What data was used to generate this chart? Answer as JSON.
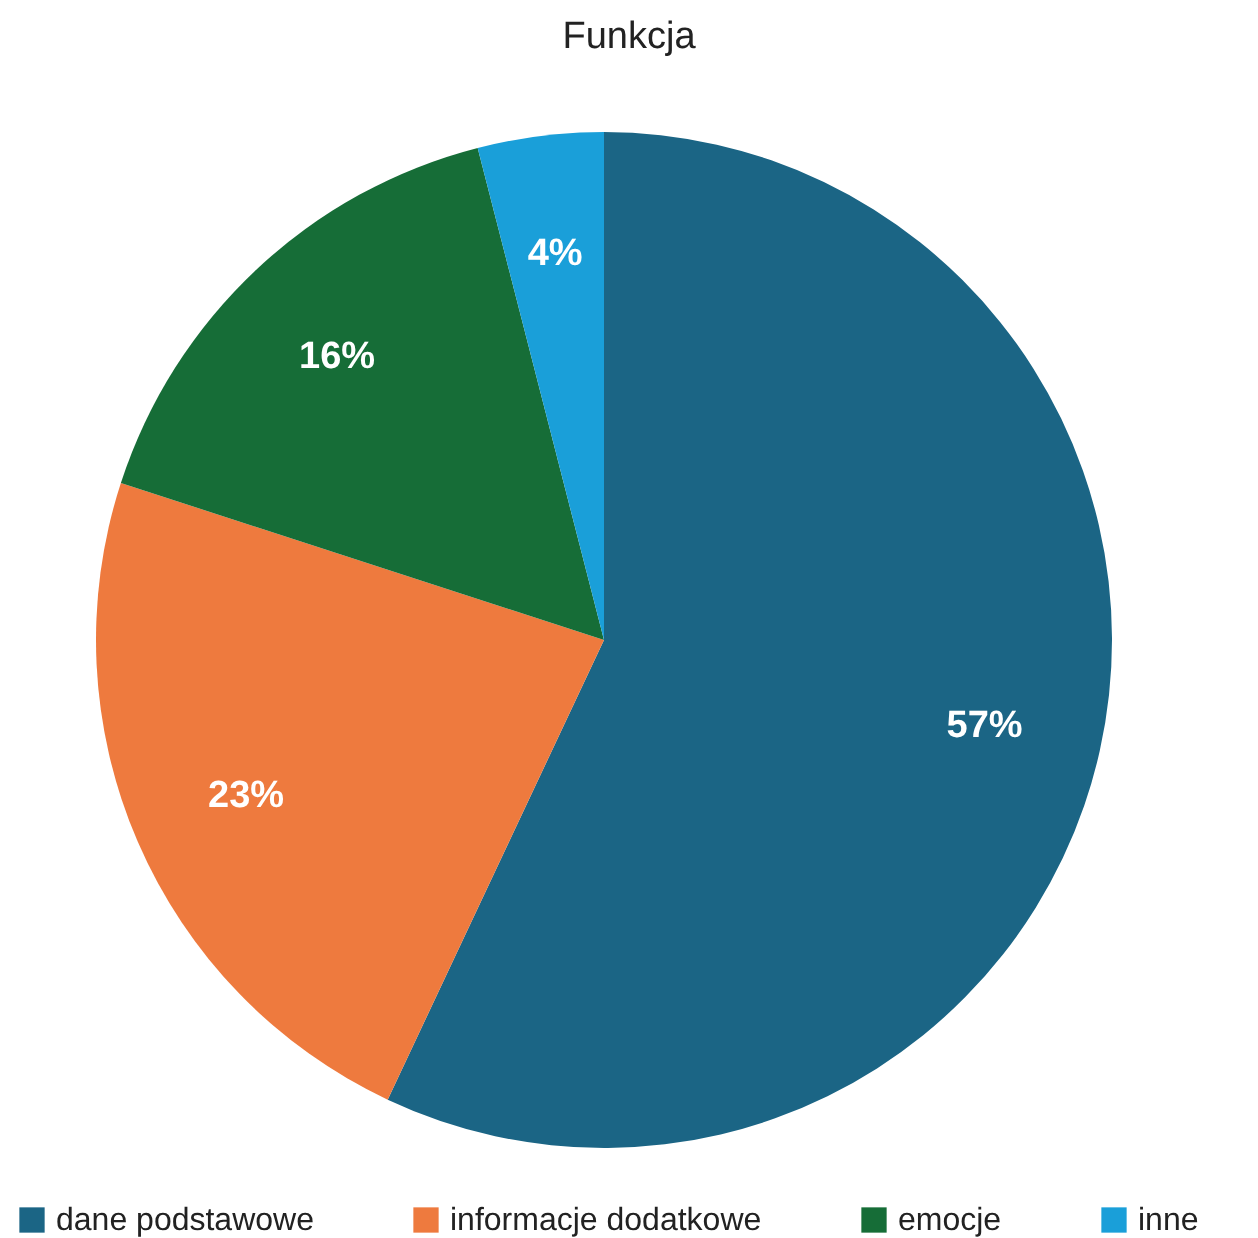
{
  "chart_data": {
    "type": "pie",
    "title": "Funkcja",
    "categories": [
      "dane podstawowe",
      "informacje dodatkowe",
      "emocje",
      "inne"
    ],
    "values": [
      57,
      23,
      16,
      4
    ],
    "colors": [
      "#1b6585",
      "#ee7a3e",
      "#166d37",
      "#1a9fd9"
    ],
    "value_labels": [
      "57%",
      "23%",
      "16%",
      "4%"
    ],
    "legend": "bottom"
  }
}
